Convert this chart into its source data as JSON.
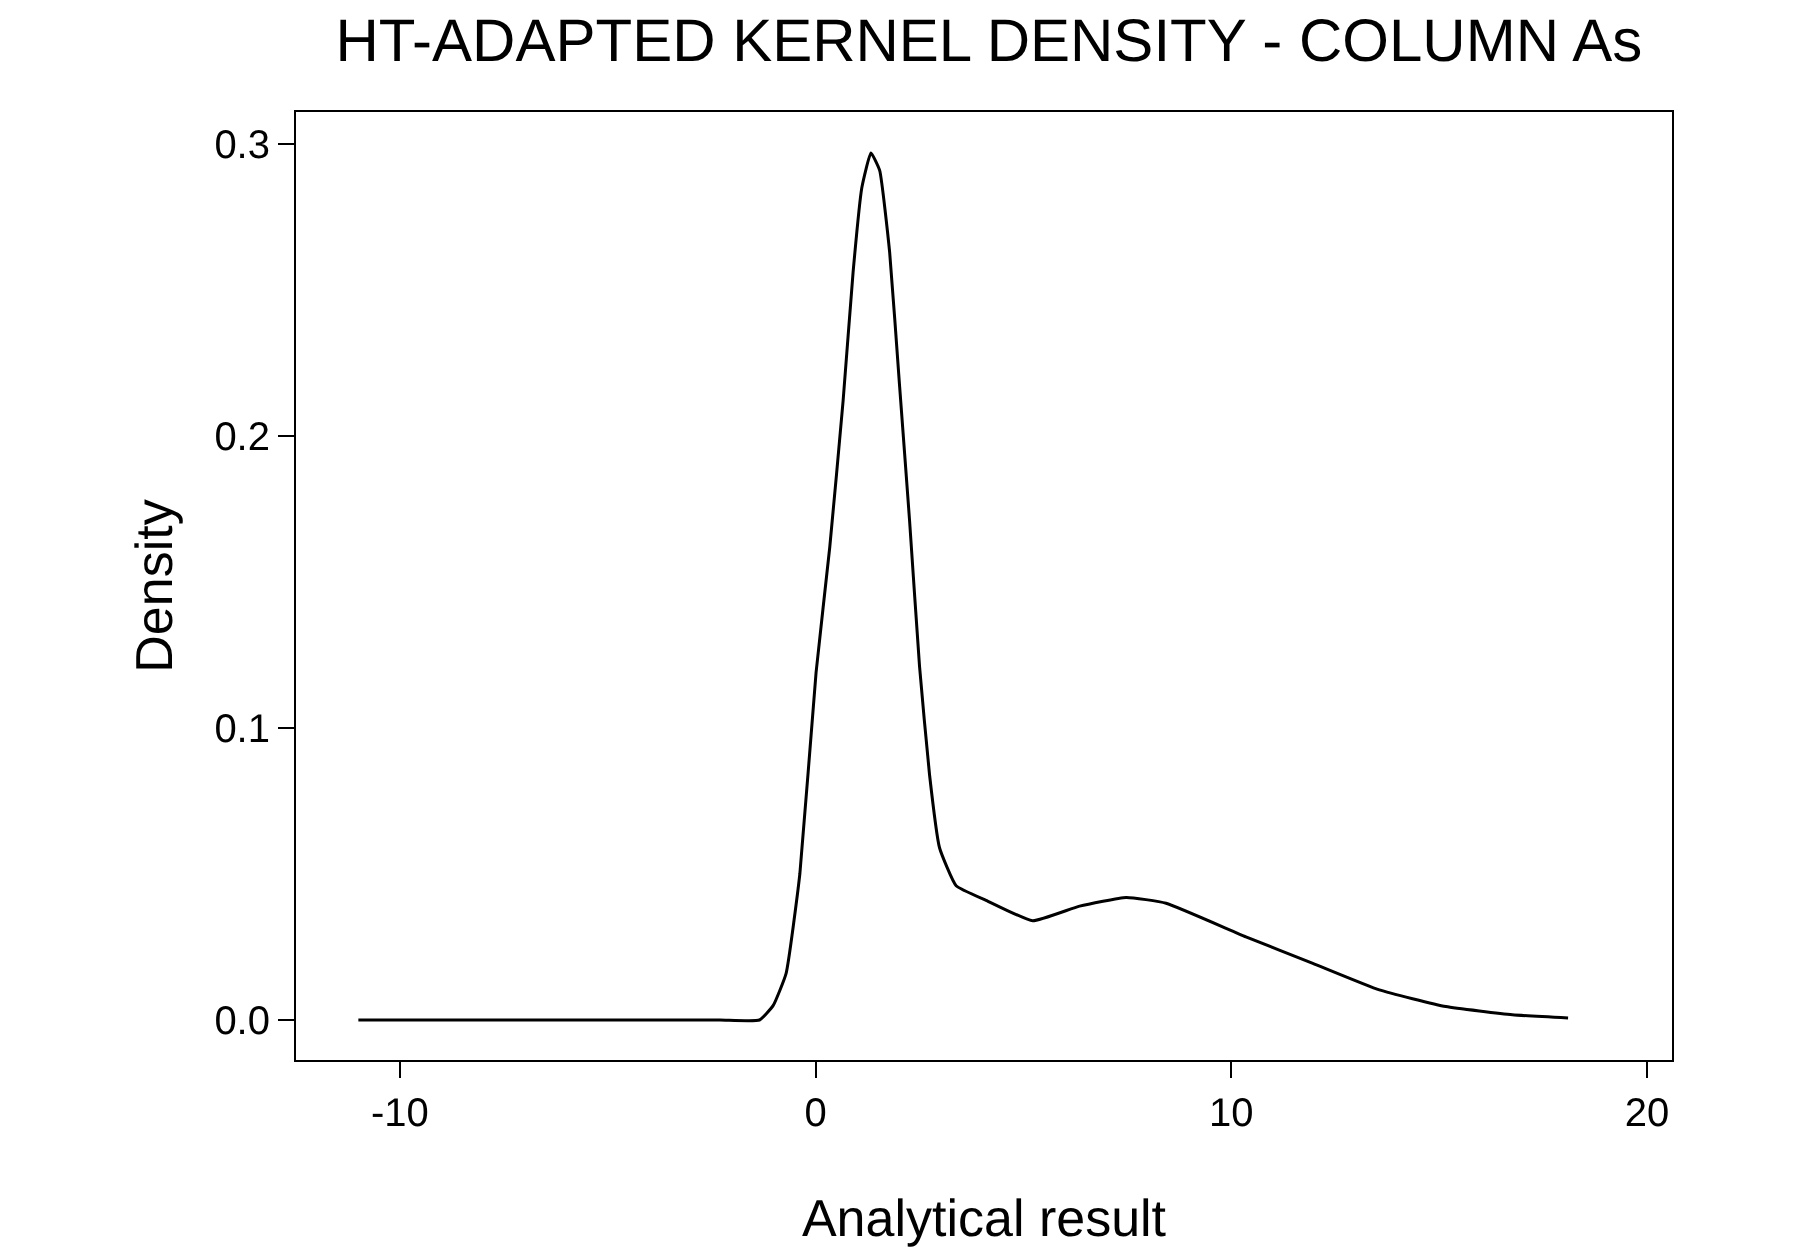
{
  "chart_data": {
    "type": "line",
    "title": "HT-ADAPTED KERNEL DENSITY - COLUMN As",
    "xlabel": "Analytical result",
    "ylabel": "Density",
    "x": [
      -11,
      -5,
      -2.3,
      -1.35,
      -1.02,
      -0.71,
      -0.38,
      0.01,
      0.34,
      0.66,
      0.9,
      1.11,
      1.33,
      1.54,
      1.78,
      2.02,
      2.26,
      2.5,
      2.74,
      2.98,
      3.38,
      4.1,
      5.22,
      6.35,
      7.47,
      8.43,
      10.35,
      11.96,
      13.56,
      15.16,
      16.76,
      18.1
    ],
    "series": [
      {
        "color": "#000000",
        "values": [
          0,
          0,
          0,
          0,
          0.005,
          0.016,
          0.05,
          0.119,
          0.162,
          0.212,
          0.256,
          0.285,
          0.297,
          0.291,
          0.263,
          0.217,
          0.171,
          0.121,
          0.084,
          0.059,
          0.046,
          0.041,
          0.034,
          0.039,
          0.042,
          0.04,
          0.0285,
          0.0194,
          0.0103,
          0.0046,
          0.0018,
          0.0007
        ]
      }
    ],
    "xlim": [
      -12.5,
      20.6
    ],
    "ylim": [
      -0.0137,
      0.311
    ],
    "xticks": [
      -10,
      0,
      10,
      20
    ],
    "yticks": [
      {
        "value": 0,
        "label": "0.0"
      },
      0.1,
      0.2,
      0.3
    ],
    "grid": false,
    "marker": "none",
    "line_style": "solid"
  }
}
